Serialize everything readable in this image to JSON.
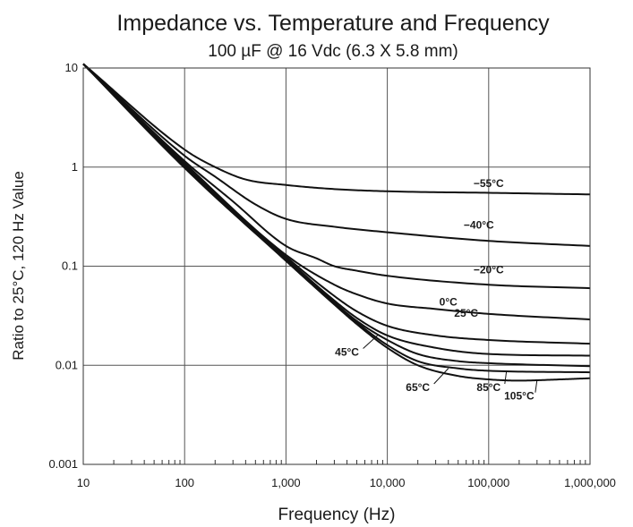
{
  "chart_data": {
    "type": "line",
    "title": "Impedance vs. Temperature and Frequency",
    "subtitle": "100 µF @ 16 Vdc (6.3 X 5.8  mm)",
    "xlabel": "Frequency (Hz)",
    "ylabel": "Ratio to 25°C, 120 Hz Value",
    "x_scale": "log",
    "y_scale": "log",
    "xlim": [
      10,
      1000000
    ],
    "ylim": [
      0.001,
      10
    ],
    "grid": true,
    "x_ticks": [
      {
        "value": 10,
        "label": "10"
      },
      {
        "value": 100,
        "label": "100"
      },
      {
        "value": 1000,
        "label": "1,000"
      },
      {
        "value": 10000,
        "label": "10,000"
      },
      {
        "value": 100000,
        "label": "100,000"
      },
      {
        "value": 1000000,
        "label": "1,000,000"
      }
    ],
    "y_ticks": [
      {
        "value": 10,
        "label": "10"
      },
      {
        "value": 1,
        "label": "1"
      },
      {
        "value": 0.1,
        "label": "0.1"
      },
      {
        "value": 0.01,
        "label": "0.01"
      },
      {
        "value": 0.001,
        "label": "0.001"
      }
    ],
    "series": [
      {
        "name": "-55°C",
        "label": "−55°C",
        "color": "#111111",
        "x": [
          10,
          100,
          200,
          400,
          1000,
          3000,
          10000,
          100000,
          1000000
        ],
        "y": [
          11,
          1.5,
          1.0,
          0.75,
          0.66,
          0.6,
          0.57,
          0.55,
          0.53
        ]
      },
      {
        "name": "-40°C",
        "label": "−40°C",
        "color": "#111111",
        "x": [
          10,
          100,
          200,
          500,
          1000,
          3000,
          10000,
          100000,
          1000000
        ],
        "y": [
          11,
          1.3,
          0.8,
          0.42,
          0.3,
          0.25,
          0.22,
          0.18,
          0.16
        ]
      },
      {
        "name": "-20°C",
        "label": "−20°C",
        "color": "#111111",
        "x": [
          10,
          100,
          300,
          1000,
          2000,
          3000,
          5000,
          10000,
          100000,
          1000000
        ],
        "y": [
          11,
          1.15,
          0.45,
          0.16,
          0.12,
          0.1,
          0.09,
          0.08,
          0.065,
          0.06
        ]
      },
      {
        "name": "0°C",
        "label": "0°C",
        "color": "#111111",
        "x": [
          10,
          100,
          1000,
          3000,
          5000,
          10000,
          30000,
          100000,
          1000000
        ],
        "y": [
          11,
          1.1,
          0.13,
          0.065,
          0.052,
          0.042,
          0.037,
          0.033,
          0.029
        ]
      },
      {
        "name": "25°C",
        "label": "25°C",
        "color": "#111111",
        "x": [
          10,
          100,
          1000,
          3000,
          5000,
          10000,
          30000,
          100000,
          1000000
        ],
        "y": [
          11,
          1.05,
          0.125,
          0.05,
          0.035,
          0.025,
          0.02,
          0.018,
          0.0165
        ]
      },
      {
        "name": "45°C",
        "label": "45°C",
        "color": "#111111",
        "x": [
          10,
          100,
          1000,
          3000,
          5000,
          10000,
          30000,
          100000,
          1000000
        ],
        "y": [
          11,
          1.02,
          0.12,
          0.045,
          0.03,
          0.02,
          0.015,
          0.013,
          0.0125
        ]
      },
      {
        "name": "65°C",
        "label": "65°C",
        "color": "#111111",
        "x": [
          10,
          100,
          1000,
          3000,
          5000,
          10000,
          20000,
          50000,
          100000,
          1000000
        ],
        "y": [
          11,
          1.0,
          0.118,
          0.043,
          0.028,
          0.018,
          0.013,
          0.011,
          0.0105,
          0.0098
        ]
      },
      {
        "name": "85°C",
        "label": "85°C",
        "color": "#111111",
        "x": [
          10,
          100,
          1000,
          3000,
          5000,
          10000,
          20000,
          50000,
          100000,
          1000000
        ],
        "y": [
          11,
          0.99,
          0.115,
          0.042,
          0.027,
          0.016,
          0.011,
          0.0093,
          0.0088,
          0.0085
        ]
      },
      {
        "name": "105°C",
        "label": "105°C",
        "color": "#111111",
        "x": [
          10,
          100,
          1000,
          3000,
          5000,
          10000,
          20000,
          50000,
          100000,
          200000,
          500000,
          1000000
        ],
        "y": [
          11,
          0.98,
          0.113,
          0.041,
          0.026,
          0.015,
          0.01,
          0.0078,
          0.0072,
          0.007,
          0.0072,
          0.0074
        ]
      }
    ],
    "annotations": [
      {
        "text": "−55°C",
        "series": "-55°C",
        "x": 100000,
        "y": 0.63
      },
      {
        "text": "−40°C",
        "series": "-40°C",
        "x": 80000,
        "y": 0.24
      },
      {
        "text": "−20°C",
        "series": "-20°C",
        "x": 100000,
        "y": 0.085
      },
      {
        "text": "0°C",
        "series": "0°C",
        "x": 40000,
        "y": 0.04
      },
      {
        "text": "25°C",
        "series": "25°C",
        "x": 60000,
        "y": 0.031
      },
      {
        "text": "45°C",
        "series": "45°C",
        "x": 4000,
        "y": 0.0125,
        "leader_to": [
          8000,
          0.02
        ]
      },
      {
        "text": "65°C",
        "series": "65°C",
        "x": 20000,
        "y": 0.0055,
        "leader_to": [
          40000,
          0.0093
        ]
      },
      {
        "text": "85°C",
        "series": "85°C",
        "x": 100000,
        "y": 0.0055,
        "leader_to": [
          150000,
          0.0088
        ]
      },
      {
        "text": "105°C",
        "series": "105°C",
        "x": 200000,
        "y": 0.0045,
        "leader_to": [
          300000,
          0.0071
        ]
      }
    ]
  }
}
